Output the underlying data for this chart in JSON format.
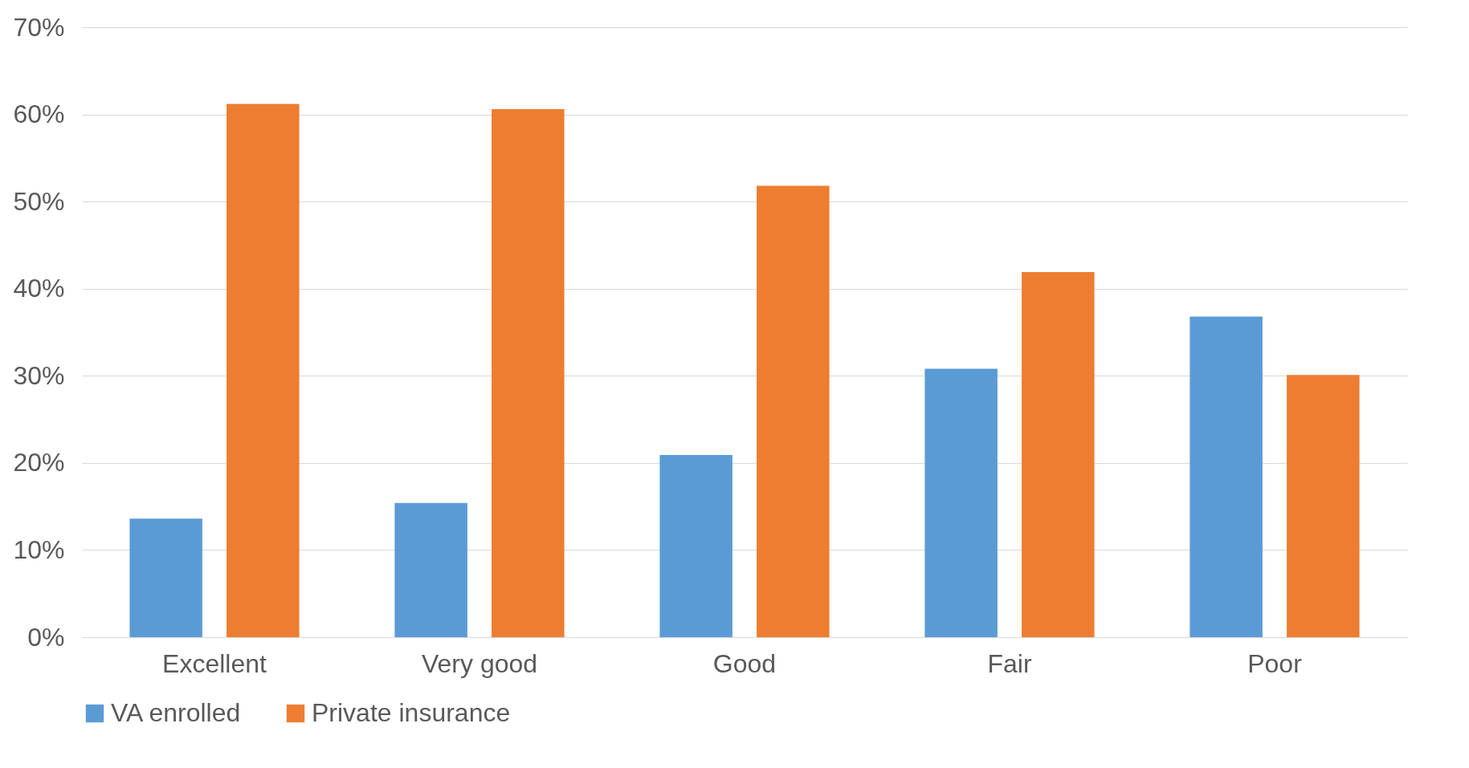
{
  "chart_data": {
    "type": "bar",
    "categories": [
      "Excellent",
      "Very good",
      "Good",
      "Fair",
      "Poor"
    ],
    "series": [
      {
        "name": "VA enrolled",
        "color": "#5b9bd5",
        "values": [
          13.6,
          15.4,
          20.9,
          30.8,
          36.8
        ]
      },
      {
        "name": "Private insurance",
        "color": "#ed7d31",
        "values": [
          61.2,
          60.6,
          51.8,
          41.9,
          30.1
        ]
      }
    ],
    "ylim": [
      0,
      70
    ],
    "yticks": [
      {
        "value": 0,
        "label": "0%"
      },
      {
        "value": 10,
        "label": "10%"
      },
      {
        "value": 20,
        "label": "20%"
      },
      {
        "value": 30,
        "label": "30%"
      },
      {
        "value": 40,
        "label": "40%"
      },
      {
        "value": 50,
        "label": "50%"
      },
      {
        "value": 60,
        "label": "60%"
      },
      {
        "value": 70,
        "label": "70%"
      }
    ],
    "grid": "y",
    "legend": "bottom"
  }
}
